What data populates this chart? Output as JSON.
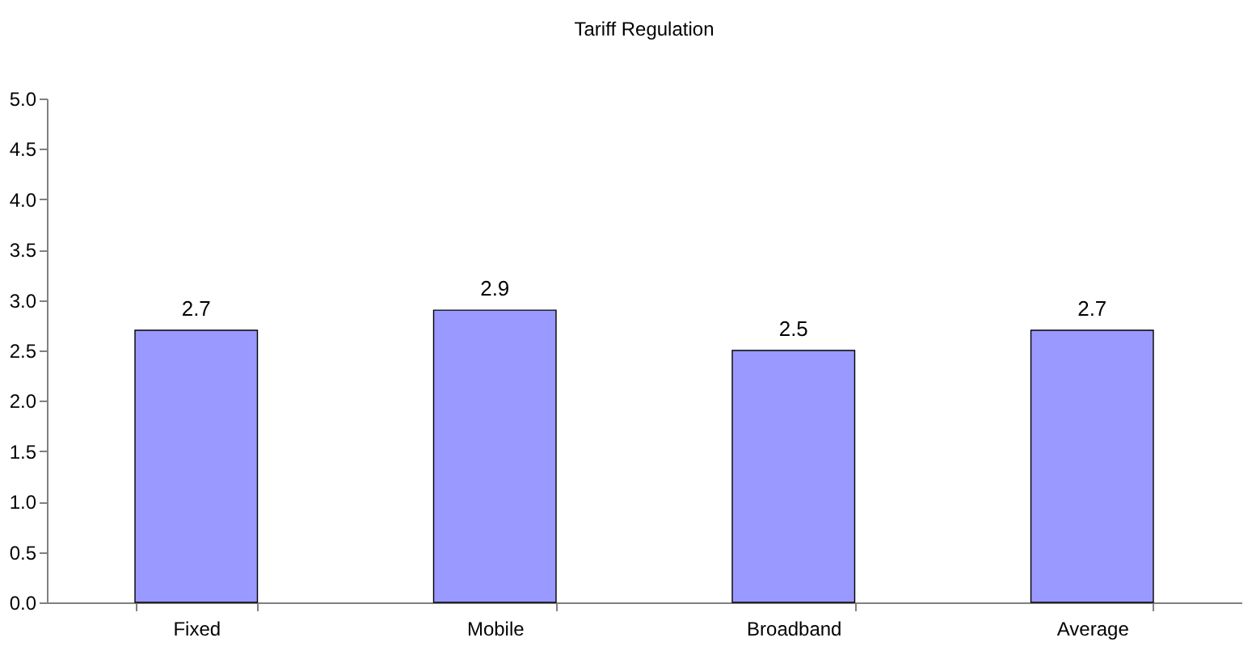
{
  "chart_data": {
    "type": "bar",
    "title": "Tariff Regulation",
    "categories": [
      "Fixed",
      "Mobile",
      "Broadband",
      "Average"
    ],
    "values": [
      2.7,
      2.9,
      2.5,
      2.7
    ],
    "color": "#9999ff",
    "ylim": [
      0,
      5
    ],
    "yticks": [
      {
        "value": 0,
        "label": "0.0"
      },
      {
        "value": 0.5,
        "label": "0.5"
      },
      {
        "value": 1,
        "label": "1.0"
      },
      {
        "value": 1.5,
        "label": "1.5"
      },
      {
        "value": 2,
        "label": "2.0"
      },
      {
        "value": 2.5,
        "label": "2.5"
      },
      {
        "value": 3,
        "label": "3.0"
      },
      {
        "value": 3.5,
        "label": "3.5"
      },
      {
        "value": 4,
        "label": "4.0"
      },
      {
        "value": 4.5,
        "label": "4.5"
      },
      {
        "value": 5,
        "label": "5.0"
      }
    ],
    "data_labels": true,
    "grid": false
  }
}
